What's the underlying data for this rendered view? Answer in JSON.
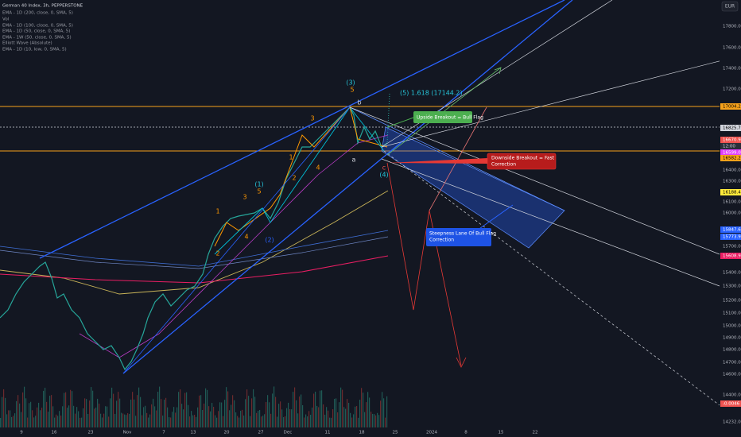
{
  "legend": {
    "symbol": "German 40 Index, 3h, PEPPERSTONE",
    "indicators": [
      "EMA - 1D (200, close, 0, SMA, 5)",
      "Vol",
      "EMA - 1D (100, close, 0, SMA, 5)",
      "EMA - 1D (50, close, 0, SMA, 5)",
      "EMA - 1W (50, close, 0, SMA, 5)",
      "Elliott Wave (Absolute)",
      "EMA - 1D (10, low, 0, SMA, 5)"
    ]
  },
  "currency": "EUR",
  "price_axis": [
    "17800.0",
    "17600.0",
    "17400.0",
    "17200.0",
    "16400.0",
    "16300.0",
    "16100.0",
    "16000.0",
    "15700.0",
    "15400.0",
    "15300.0",
    "15200.0",
    "15100.0",
    "15000.0",
    "14900.0",
    "14800.0",
    "14700.0",
    "14600.0",
    "14400.0",
    "14232.0"
  ],
  "price_tags": [
    "17004.2",
    "16825.7",
    "16670.9",
    "12:00",
    "16599.0",
    "16582.2",
    "16188.4",
    "15847.6",
    "15773.9",
    "15608.9",
    "-0.0046"
  ],
  "time_axis": [
    "9",
    "16",
    "23",
    "Nov",
    "7",
    "13",
    "20",
    "27",
    "Dec",
    "11",
    "18",
    "25",
    "2024",
    "8",
    "15",
    "22"
  ],
  "wave_labels": [
    "(3)",
    "5",
    "b",
    "3",
    "1",
    "4",
    "a",
    "c",
    "(4)",
    "(1)",
    "5",
    "3",
    "1",
    "4",
    "(2)",
    "2",
    "2"
  ],
  "target": "(5) 1.618 (17144.2)",
  "callouts": {
    "upside": "Upside Breakout = Bull Flag",
    "downside": [
      "Downside Breakout = Fast",
      "Correction"
    ],
    "steepness": [
      "Steepness Lane Of Bull Flag",
      "Correction"
    ]
  }
}
